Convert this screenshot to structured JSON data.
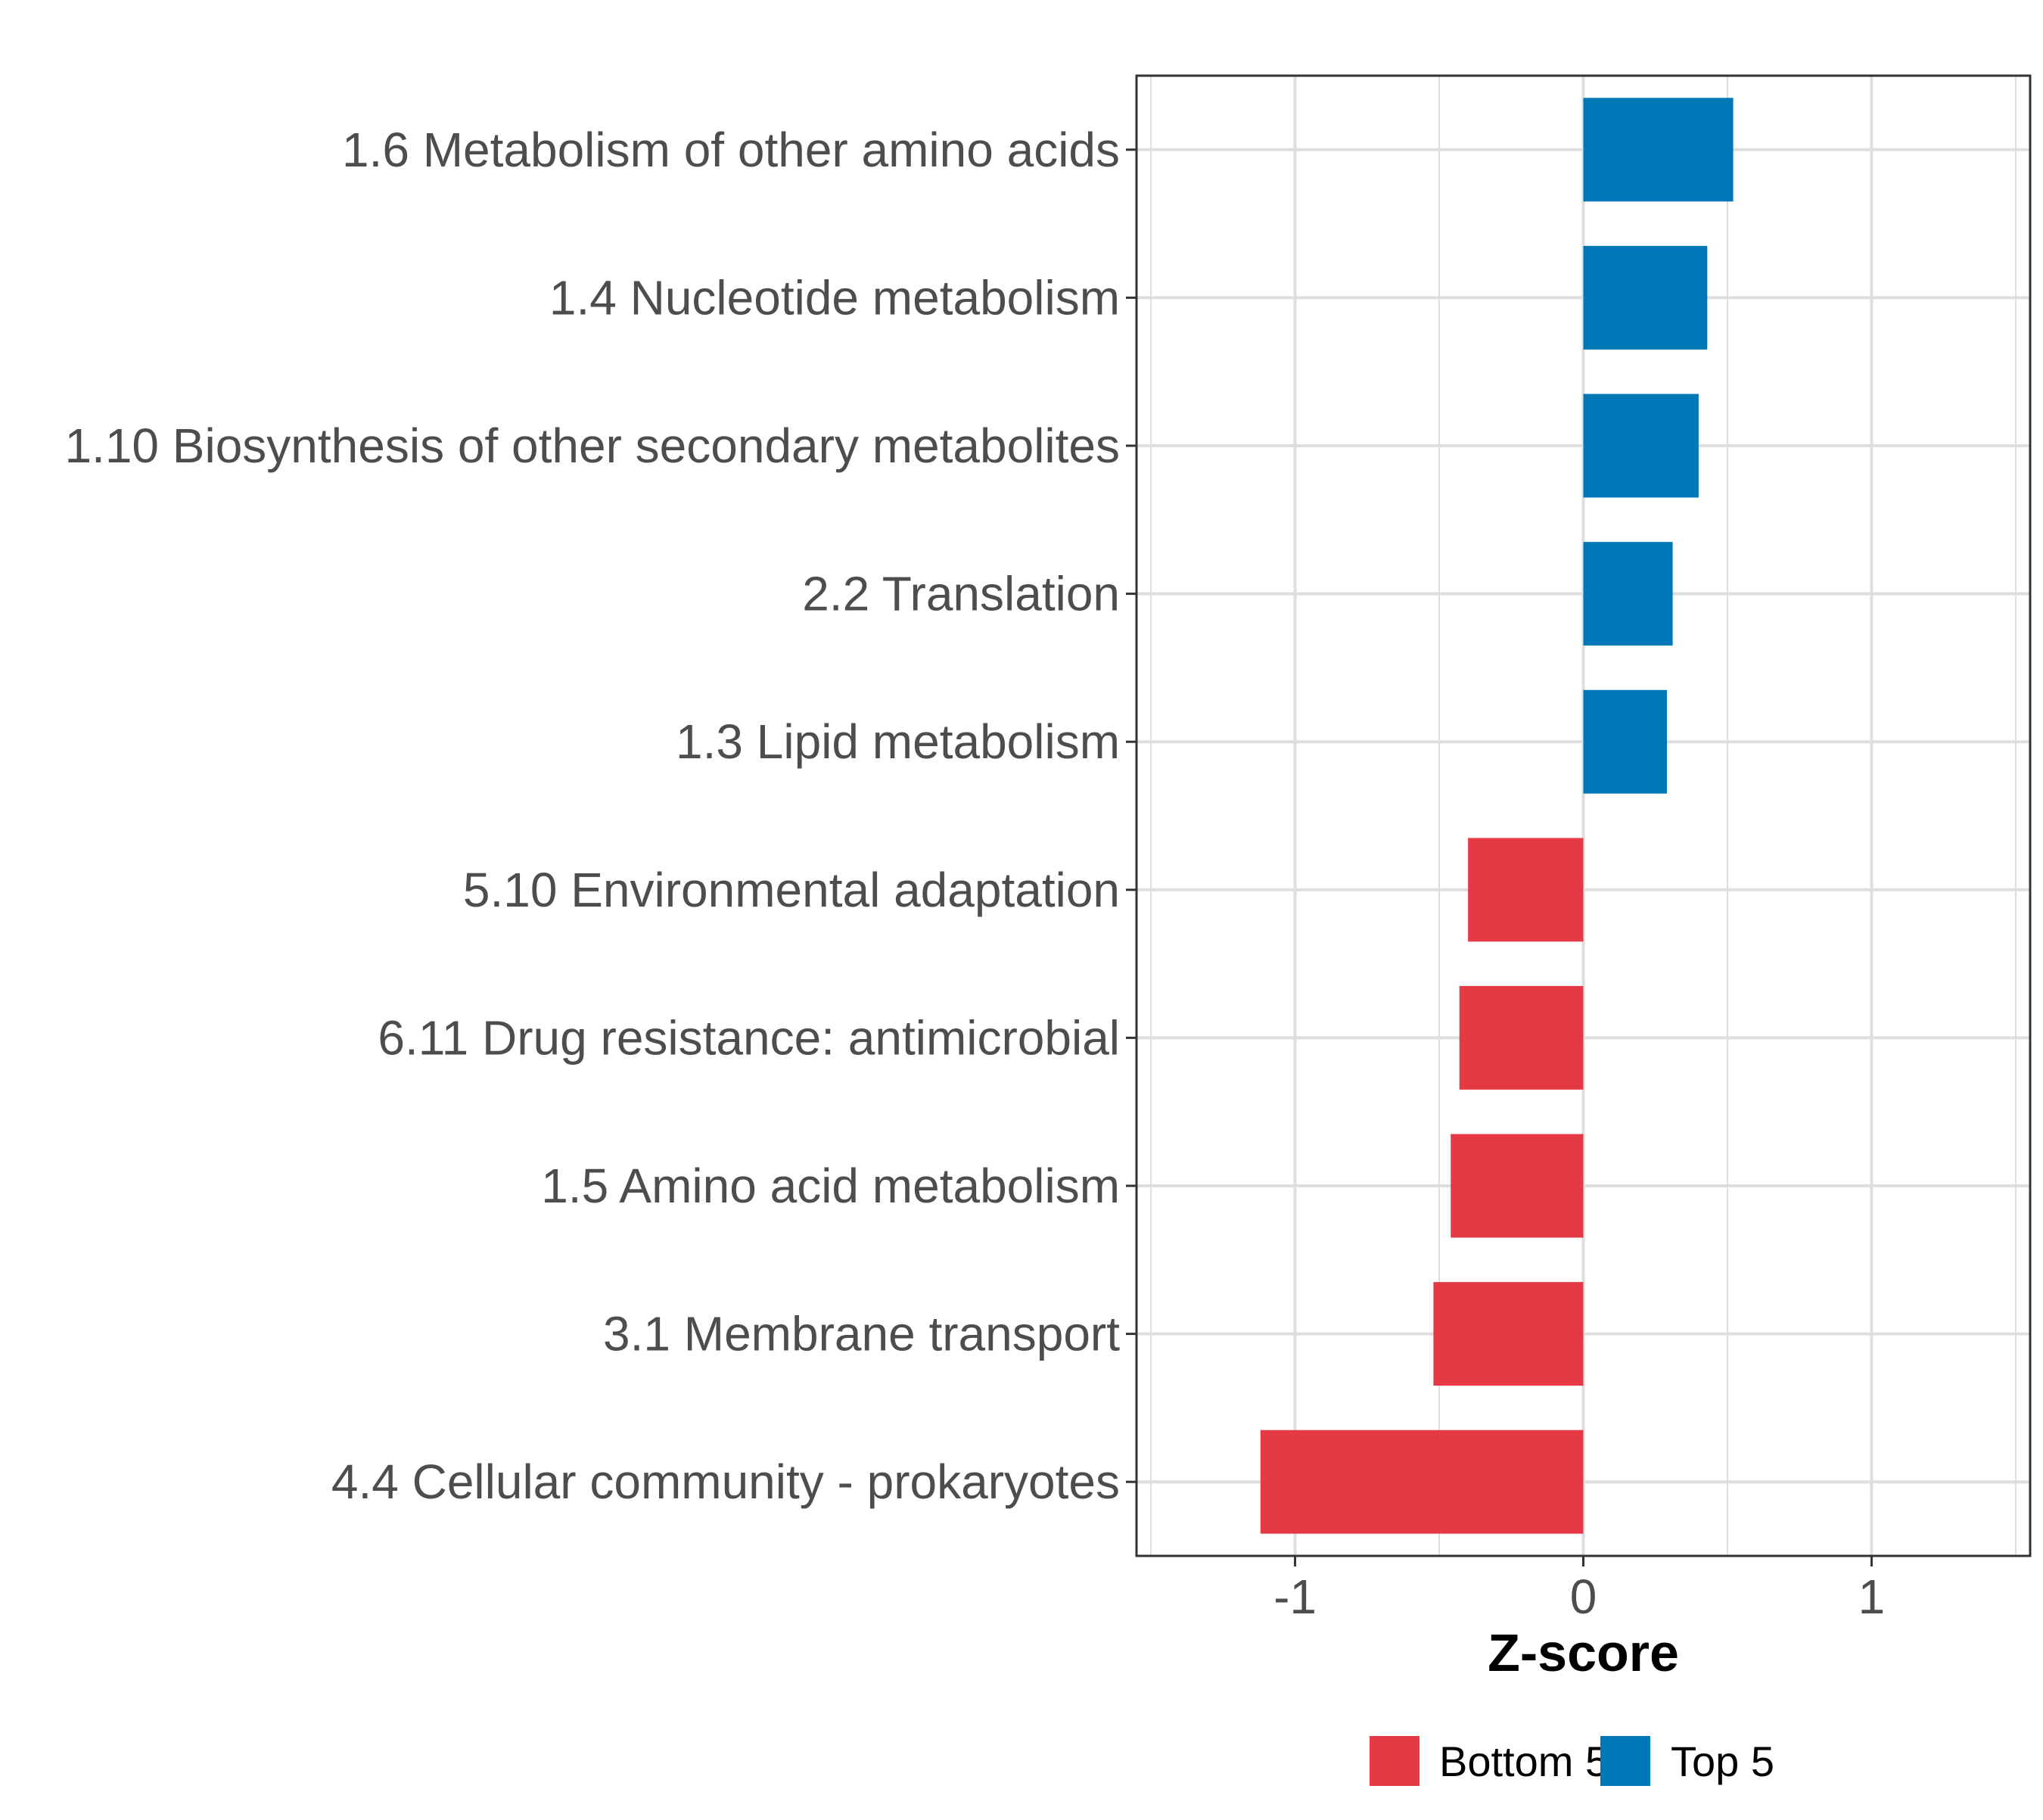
{
  "chart_data": {
    "type": "bar",
    "orientation": "horizontal",
    "title": "",
    "xlabel": "Z-score",
    "ylabel": "",
    "xlim": [
      -1.55,
      1.55
    ],
    "x_ticks": [
      -1,
      0,
      1
    ],
    "x_tick_labels": [
      "-1",
      "0",
      "1"
    ],
    "grid": true,
    "legend_position": "bottom",
    "legend": [
      {
        "label": "Bottom 5",
        "color": "#E63946"
      },
      {
        "label": "Top 5",
        "color": "#0077B6"
      }
    ],
    "categories": [
      "1.6 Metabolism of other amino acids",
      "1.4 Nucleotide metabolism",
      "1.10 Biosynthesis of other secondary metabolites",
      "2.2 Translation",
      "1.3 Lipid metabolism",
      "5.10 Environmental adaptation",
      "6.11 Drug resistance: antimicrobial",
      "1.5 Amino acid metabolism",
      "3.1 Membrane transport",
      "4.4 Cellular community - prokaryotes"
    ],
    "values": [
      0.52,
      0.43,
      0.4,
      0.31,
      0.29,
      -0.4,
      -0.43,
      -0.46,
      -0.52,
      -1.12
    ],
    "groups": [
      "Top 5",
      "Top 5",
      "Top 5",
      "Top 5",
      "Top 5",
      "Bottom 5",
      "Bottom 5",
      "Bottom 5",
      "Bottom 5",
      "Bottom 5"
    ]
  }
}
